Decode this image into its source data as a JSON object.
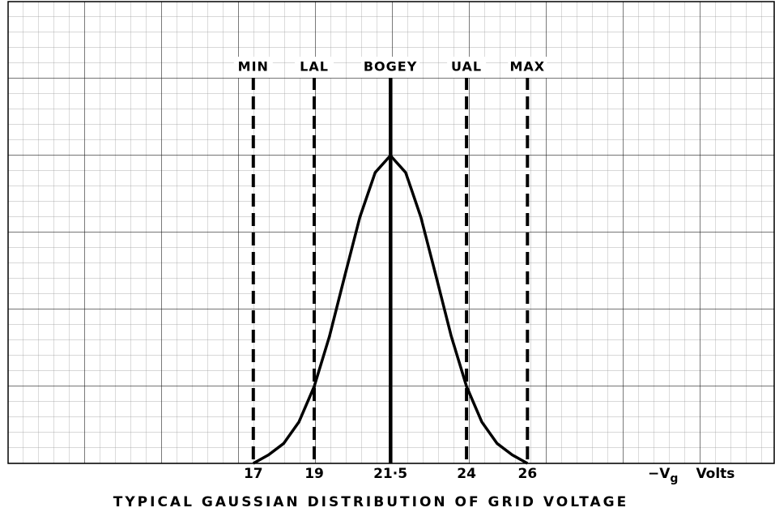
{
  "chart_data": {
    "type": "line",
    "title": "TYPICAL GAUSSIAN DISTRIBUTION OF GRID VOLTAGE",
    "x_label": {
      "symbol": "−V",
      "subscript": "g",
      "unit": "Volts"
    },
    "x": [
      17,
      17.5,
      18,
      18.5,
      19,
      19.5,
      20,
      20.5,
      21,
      21.5,
      22,
      22.5,
      23,
      23.5,
      24,
      24.5,
      25,
      25.5,
      26
    ],
    "values": [
      0,
      0.11,
      0.26,
      0.54,
      1.0,
      1.65,
      2.43,
      3.2,
      3.78,
      4.0,
      3.78,
      3.2,
      2.43,
      1.65,
      1.0,
      0.54,
      0.26,
      0.11,
      0
    ],
    "color": "#000000",
    "xlim": [
      8.95,
      34.1
    ],
    "ylim": [
      0,
      6
    ],
    "xticks": [
      17,
      19,
      {
        "value": 21.5,
        "label": "21·5"
      },
      24,
      26
    ],
    "marker_labels": [
      "MIN",
      "LAL",
      "BOGEY",
      "UAL",
      "MAX"
    ],
    "marker_styles": [
      "dashed",
      "dashed",
      "solid",
      "dashed",
      "dashed"
    ]
  }
}
